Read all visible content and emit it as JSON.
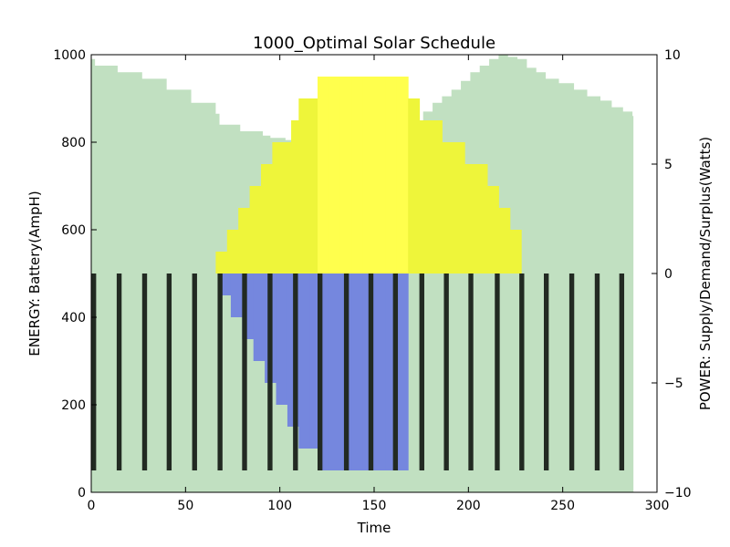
{
  "chart_data": {
    "type": "bar",
    "title": "1000_Optimal Solar Schedule",
    "xlabel": "Time",
    "ylabel_left": "ENERGY: Battery(AmpH)",
    "ylabel_right": "POWER: Supply/Demand/Surplus(Watts)",
    "xlim": [
      0,
      300
    ],
    "ylim_left": [
      0,
      1000
    ],
    "ylim_right": [
      -10,
      10
    ],
    "x_ticks": [
      "0",
      "50",
      "100",
      "150",
      "200",
      "250",
      "300"
    ],
    "y_left_ticks": [
      "0",
      "200",
      "400",
      "600",
      "800",
      "1000"
    ],
    "y_right_ticks": [
      "−10",
      "−5",
      "0",
      "5",
      "10"
    ],
    "grid": false,
    "colors": {
      "battery": "#c1e0c1",
      "supply": "#eef53a",
      "supply_peak": "#ffff4d",
      "surplus": "#7587de",
      "demand": "#222a22"
    },
    "series": [
      {
        "kind": "battery_area",
        "axis": "left",
        "points": [
          [
            0,
            990
          ],
          [
            2,
            975
          ],
          [
            14,
            960
          ],
          [
            27,
            945
          ],
          [
            40,
            920
          ],
          [
            53,
            890
          ],
          [
            66,
            865
          ],
          [
            68,
            840
          ],
          [
            79,
            825
          ],
          [
            91,
            815
          ],
          [
            95,
            810
          ],
          [
            103,
            805
          ],
          [
            108,
            850
          ],
          [
            113,
            830
          ],
          [
            121,
            800
          ],
          [
            131,
            800
          ],
          [
            141,
            800
          ],
          [
            151,
            800
          ],
          [
            161,
            800
          ],
          [
            166,
            830
          ],
          [
            171,
            850
          ],
          [
            176,
            870
          ],
          [
            181,
            890
          ],
          [
            186,
            905
          ],
          [
            191,
            920
          ],
          [
            196,
            940
          ],
          [
            201,
            960
          ],
          [
            206,
            975
          ],
          [
            211,
            990
          ],
          [
            216,
            1000
          ],
          [
            221,
            995
          ],
          [
            226,
            990
          ],
          [
            231,
            970
          ],
          [
            236,
            960
          ],
          [
            241,
            945
          ],
          [
            248,
            935
          ],
          [
            256,
            920
          ],
          [
            263,
            905
          ],
          [
            270,
            895
          ],
          [
            276,
            880
          ],
          [
            282,
            870
          ],
          [
            287,
            860
          ]
        ]
      },
      {
        "kind": "supply_bars",
        "axis": "right",
        "width": 6,
        "points": [
          [
            66,
            1.0
          ],
          [
            72,
            2.0
          ],
          [
            78,
            3.0
          ],
          [
            84,
            4.0
          ],
          [
            90,
            5.0
          ],
          [
            96,
            6.0
          ],
          [
            102,
            6.0
          ],
          [
            106,
            7.0
          ],
          [
            110,
            8.0
          ],
          [
            116,
            8.0
          ],
          [
            120,
            9.0
          ],
          [
            126,
            9.0
          ],
          [
            132,
            9.0
          ],
          [
            138,
            9.0
          ],
          [
            144,
            9.0
          ],
          [
            150,
            9.0
          ],
          [
            156,
            9.0
          ],
          [
            162,
            9.0
          ],
          [
            168,
            8.0
          ],
          [
            174,
            7.0
          ],
          [
            180,
            7.0
          ],
          [
            186,
            6.0
          ],
          [
            192,
            6.0
          ],
          [
            198,
            5.0
          ],
          [
            204,
            5.0
          ],
          [
            210,
            4.0
          ],
          [
            216,
            3.0
          ],
          [
            222,
            2.0
          ]
        ]
      },
      {
        "kind": "surplus_bars",
        "axis": "right",
        "width": 6,
        "points": [
          [
            68,
            -1.0
          ],
          [
            74,
            -2.0
          ],
          [
            80,
            -3.0
          ],
          [
            86,
            -4.0
          ],
          [
            92,
            -5.0
          ],
          [
            98,
            -6.0
          ],
          [
            104,
            -7.0
          ],
          [
            110,
            -8.0
          ],
          [
            116,
            -8.0
          ],
          [
            120,
            -9.0
          ],
          [
            126,
            -9.0
          ],
          [
            132,
            -9.0
          ],
          [
            138,
            -9.0
          ],
          [
            144,
            -9.0
          ],
          [
            150,
            -9.0
          ],
          [
            156,
            -9.0
          ],
          [
            162,
            -9.0
          ]
        ]
      },
      {
        "kind": "demand_bars",
        "axis": "right",
        "width": 2.6,
        "x": [
          0,
          13.5,
          27,
          40,
          53.5,
          67,
          80,
          93.5,
          107,
          120,
          134,
          147,
          160,
          174,
          187,
          200,
          214,
          227,
          240,
          253.5,
          267,
          280
        ],
        "value": -9.0
      }
    ]
  }
}
